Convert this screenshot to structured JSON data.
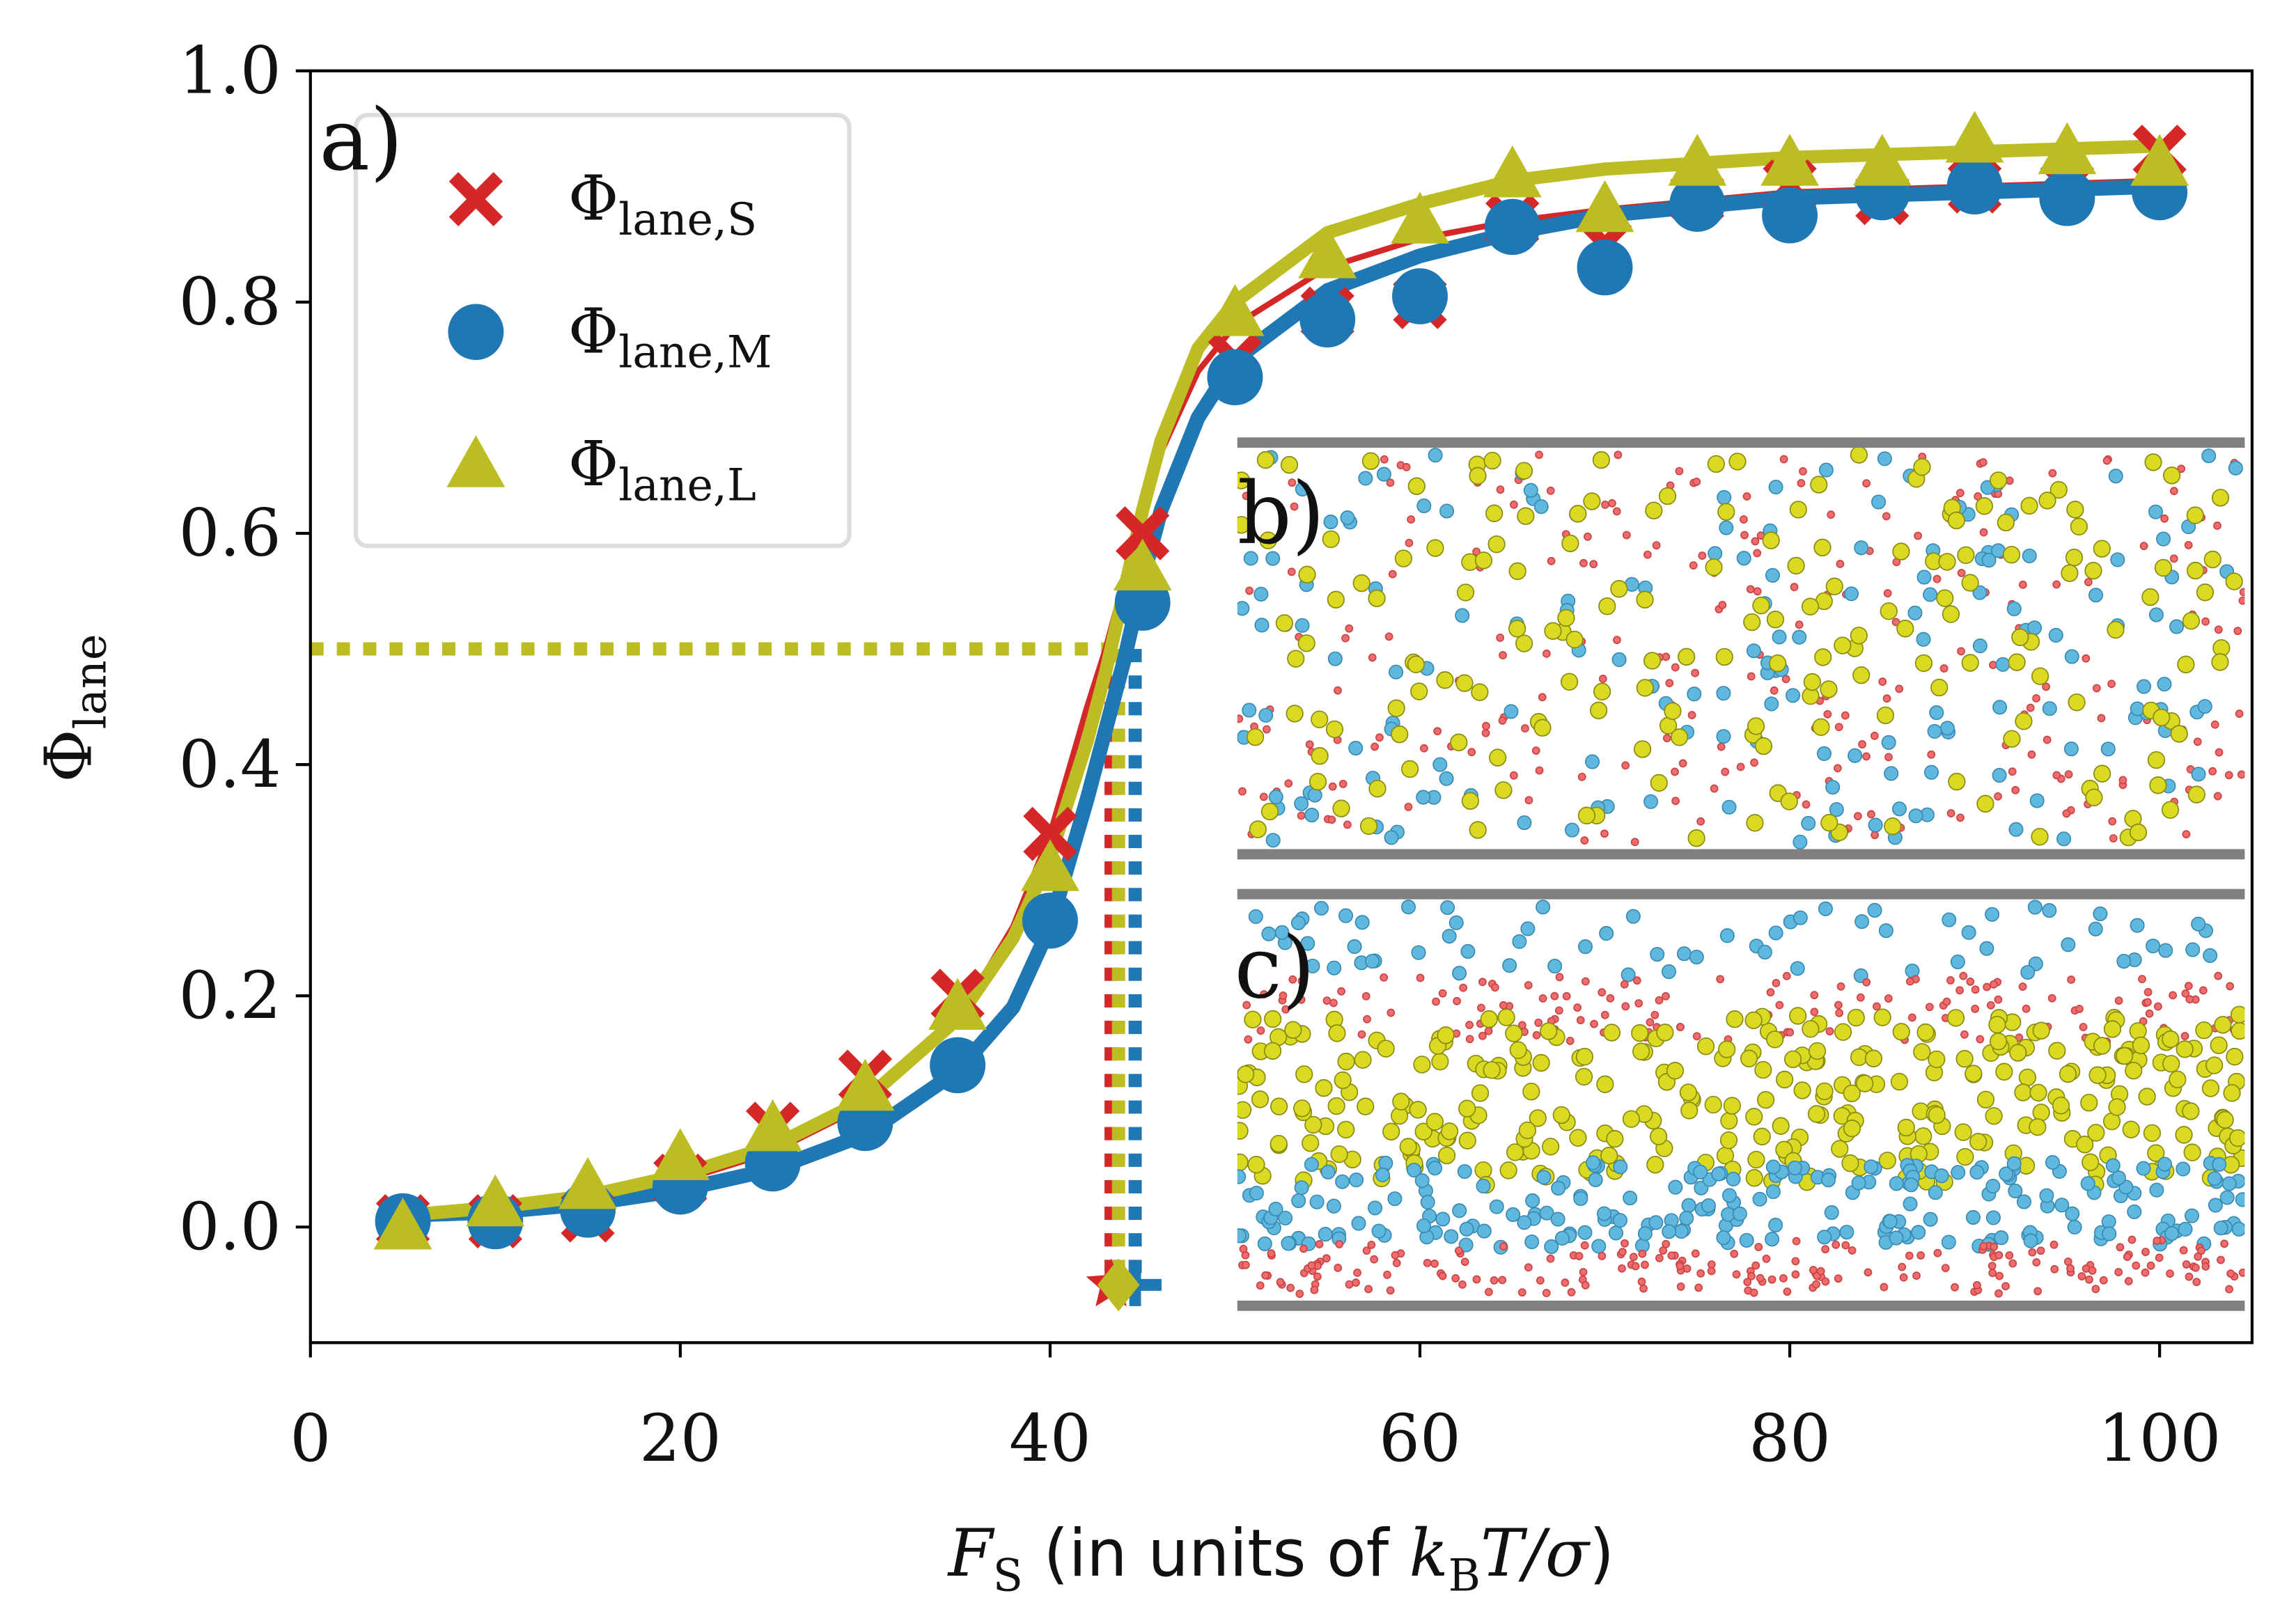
{
  "chart_data": {
    "type": "scatter",
    "panel_labels": [
      "a)",
      "b)",
      "c)"
    ],
    "xlabel": [
      {
        "text": "F",
        "style": "italic"
      },
      {
        "text": "S",
        "style": "sub"
      },
      {
        "text": " (in units of ",
        "style": "sans"
      },
      {
        "text": "k",
        "style": "italic"
      },
      {
        "text": "B",
        "style": "sub"
      },
      {
        "text": "T/σ",
        "style": "italic"
      },
      {
        "text": ")",
        "style": "sans"
      }
    ],
    "ylabel": "Φ",
    "ylabel_sub": "lane",
    "xlim": [
      0,
      105
    ],
    "ylim": [
      -0.1,
      1.0
    ],
    "xticks": [
      0,
      20,
      40,
      60,
      80,
      100
    ],
    "yticks": [
      {
        "value": 0,
        "label": "0.0"
      },
      0.2,
      0.4,
      0.6,
      0.8,
      {
        "value": 1,
        "label": "1.0"
      }
    ],
    "threshold": 0.5,
    "midpoint_y": -0.05,
    "x": [
      5,
      10,
      15,
      20,
      25,
      30,
      35,
      40,
      45,
      50,
      55,
      60,
      65,
      70,
      75,
      80,
      85,
      90,
      95,
      100
    ],
    "fit_x": [
      5,
      10,
      15,
      20,
      25,
      30,
      35,
      38,
      40,
      42,
      43,
      44,
      45,
      46,
      48,
      50,
      55,
      60,
      65,
      70,
      80,
      90,
      100
    ],
    "series": [
      {
        "name": "Φ",
        "name_sub": "lane,S",
        "color": "#d62728",
        "marker": "x",
        "fit_width": 4,
        "midpoint": 43.3,
        "midpoint_marker": "star",
        "values": [
          0.005,
          0.005,
          0.01,
          0.04,
          0.085,
          0.13,
          0.2,
          0.34,
          0.6,
          0.75,
          0.79,
          0.8,
          0.87,
          0.85,
          0.89,
          0.9,
          0.89,
          0.9,
          0.9,
          0.93
        ],
        "fit": [
          0.01,
          0.015,
          0.025,
          0.04,
          0.065,
          0.105,
          0.18,
          0.26,
          0.34,
          0.45,
          0.5,
          0.56,
          0.62,
          0.67,
          0.74,
          0.78,
          0.83,
          0.855,
          0.87,
          0.88,
          0.895,
          0.9,
          0.905
        ]
      },
      {
        "name": "Φ",
        "name_sub": "lane,M",
        "color": "#1f77b4",
        "marker": "o",
        "fit_width": 10,
        "midpoint": 44.6,
        "midpoint_marker": "plus",
        "values": [
          0.005,
          0.005,
          0.015,
          0.035,
          0.055,
          0.09,
          0.14,
          0.265,
          0.54,
          0.735,
          0.785,
          0.805,
          0.865,
          0.83,
          0.885,
          0.875,
          0.895,
          0.9,
          0.89,
          0.895
        ],
        "fit": [
          0.01,
          0.013,
          0.02,
          0.032,
          0.05,
          0.08,
          0.135,
          0.19,
          0.26,
          0.37,
          0.43,
          0.49,
          0.56,
          0.62,
          0.7,
          0.75,
          0.81,
          0.84,
          0.86,
          0.875,
          0.89,
          0.895,
          0.9
        ]
      },
      {
        "name": "Φ",
        "name_sub": "lane,L",
        "color": "#bcbd22",
        "marker": "^",
        "fit_width": 9,
        "midpoint": 43.7,
        "midpoint_marker": "diamond",
        "values": [
          0.0,
          0.02,
          0.035,
          0.06,
          0.085,
          0.12,
          0.19,
          0.31,
          0.57,
          0.79,
          0.84,
          0.87,
          0.91,
          0.88,
          0.92,
          0.92,
          0.92,
          0.94,
          0.93,
          0.92
        ],
        "fit": [
          0.01,
          0.017,
          0.027,
          0.045,
          0.07,
          0.11,
          0.18,
          0.25,
          0.32,
          0.42,
          0.48,
          0.55,
          0.62,
          0.68,
          0.76,
          0.8,
          0.86,
          0.885,
          0.905,
          0.915,
          0.925,
          0.93,
          0.935
        ]
      }
    ]
  }
}
